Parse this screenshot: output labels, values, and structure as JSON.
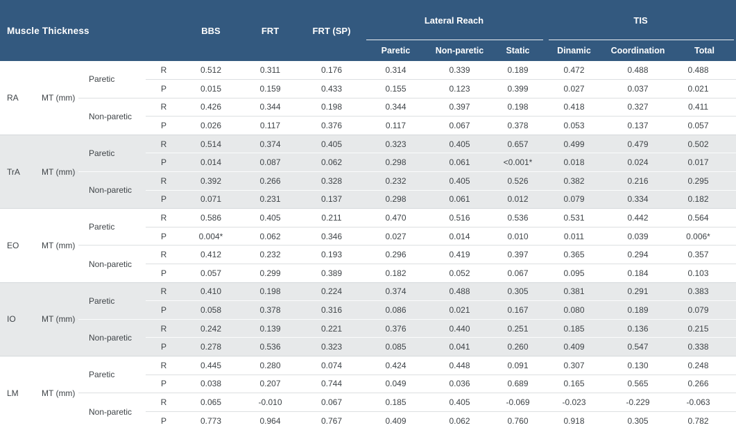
{
  "colors": {
    "header_bg": "#33597f",
    "header_text": "#ffffff",
    "band_bg": "#e7e9ea",
    "text": "#3e4347",
    "separator_light": "#dcdfe1",
    "separator_on_band": "#fbfcfc"
  },
  "table": {
    "title": "Muscle Thickness",
    "flat_headers": [
      "BBS",
      "FRT",
      "FRT (SP)"
    ],
    "groups": [
      {
        "label": "Lateral Reach",
        "cols": [
          "Paretic",
          "Non-paretic",
          "Static"
        ]
      },
      {
        "label": "TIS",
        "cols": [
          "Dinamic",
          "Coordination",
          "Total"
        ]
      }
    ],
    "measure_label": "MT (mm)",
    "blocks": [
      {
        "muscle": "RA",
        "shaded": false,
        "sides": [
          {
            "label": "Paretic",
            "rows": [
              {
                "stat": "R",
                "values": [
                  "0.512",
                  "0.311",
                  "0.176",
                  "0.314",
                  "0.339",
                  "0.189",
                  "0.472",
                  "0.488",
                  "0.488"
                ]
              },
              {
                "stat": "P",
                "values": [
                  "0.015",
                  "0.159",
                  "0.433",
                  "0.155",
                  "0.123",
                  "0.399",
                  "0.027",
                  "0.037",
                  "0.021"
                ]
              }
            ]
          },
          {
            "label": "Non-paretic",
            "rows": [
              {
                "stat": "R",
                "values": [
                  "0.426",
                  "0.344",
                  "0.198",
                  "0.344",
                  "0.397",
                  "0.198",
                  "0.418",
                  "0.327",
                  "0.411"
                ]
              },
              {
                "stat": "P",
                "values": [
                  "0.026",
                  "0.117",
                  "0.376",
                  "0.117",
                  "0.067",
                  "0.378",
                  "0.053",
                  "0.137",
                  "0.057"
                ]
              }
            ]
          }
        ]
      },
      {
        "muscle": "TrA",
        "shaded": true,
        "sides": [
          {
            "label": "Paretic",
            "rows": [
              {
                "stat": "R",
                "values": [
                  "0.514",
                  "0.374",
                  "0.405",
                  "0.323",
                  "0.405",
                  "0.657",
                  "0.499",
                  "0.479",
                  "0.502"
                ]
              },
              {
                "stat": "P",
                "values": [
                  "0.014",
                  "0.087",
                  "0.062",
                  "0.298",
                  "0.061",
                  "<0.001*",
                  "0.018",
                  "0.024",
                  "0.017"
                ]
              }
            ]
          },
          {
            "label": "Non-paretic",
            "rows": [
              {
                "stat": "R",
                "values": [
                  "0.392",
                  "0.266",
                  "0.328",
                  "0.232",
                  "0.405",
                  "0.526",
                  "0.382",
                  "0.216",
                  "0.295"
                ]
              },
              {
                "stat": "P",
                "values": [
                  "0.071",
                  "0.231",
                  "0.137",
                  "0.298",
                  "0.061",
                  "0.012",
                  "0.079",
                  "0.334",
                  "0.182"
                ]
              }
            ]
          }
        ]
      },
      {
        "muscle": "EO",
        "shaded": false,
        "sides": [
          {
            "label": "Paretic",
            "rows": [
              {
                "stat": "R",
                "values": [
                  "0.586",
                  "0.405",
                  "0.211",
                  "0.470",
                  "0.516",
                  "0.536",
                  "0.531",
                  "0.442",
                  "0.564"
                ]
              },
              {
                "stat": "P",
                "values": [
                  "0.004*",
                  "0.062",
                  "0.346",
                  "0.027",
                  "0.014",
                  "0.010",
                  "0.011",
                  "0.039",
                  "0.006*"
                ]
              }
            ]
          },
          {
            "label": "Non-paretic",
            "rows": [
              {
                "stat": "R",
                "values": [
                  "0.412",
                  "0.232",
                  "0.193",
                  "0.296",
                  "0.419",
                  "0.397",
                  "0.365",
                  "0.294",
                  "0.357"
                ]
              },
              {
                "stat": "P",
                "values": [
                  "0.057",
                  "0.299",
                  "0.389",
                  "0.182",
                  "0.052",
                  "0.067",
                  "0.095",
                  "0.184",
                  "0.103"
                ]
              }
            ]
          }
        ]
      },
      {
        "muscle": "IO",
        "shaded": true,
        "sides": [
          {
            "label": "Paretic",
            "rows": [
              {
                "stat": "R",
                "values": [
                  "0.410",
                  "0.198",
                  "0.224",
                  "0.374",
                  "0.488",
                  "0.305",
                  "0.381",
                  "0.291",
                  "0.383"
                ]
              },
              {
                "stat": "P",
                "values": [
                  "0.058",
                  "0.378",
                  "0.316",
                  "0.086",
                  "0.021",
                  "0.167",
                  "0.080",
                  "0.189",
                  "0.079"
                ]
              }
            ]
          },
          {
            "label": "Non-paretic",
            "rows": [
              {
                "stat": "R",
                "values": [
                  "0.242",
                  "0.139",
                  "0.221",
                  "0.376",
                  "0.440",
                  "0.251",
                  "0.185",
                  "0.136",
                  "0.215"
                ]
              },
              {
                "stat": "P",
                "values": [
                  "0.278",
                  "0.536",
                  "0.323",
                  "0.085",
                  "0.041",
                  "0.260",
                  "0.409",
                  "0.547",
                  "0.338"
                ]
              }
            ]
          }
        ]
      },
      {
        "muscle": "LM",
        "shaded": false,
        "sides": [
          {
            "label": "Paretic",
            "rows": [
              {
                "stat": "R",
                "values": [
                  "0.445",
                  "0.280",
                  "0.074",
                  "0.424",
                  "0.448",
                  "0.091",
                  "0.307",
                  "0.130",
                  "0.248"
                ]
              },
              {
                "stat": "P",
                "values": [
                  "0.038",
                  "0.207",
                  "0.744",
                  "0.049",
                  "0.036",
                  "0.689",
                  "0.165",
                  "0.565",
                  "0.266"
                ]
              }
            ]
          },
          {
            "label": "Non-paretic",
            "rows": [
              {
                "stat": "R",
                "values": [
                  "0.065",
                  "-0.010",
                  "0.067",
                  "0.185",
                  "0.405",
                  "-0.069",
                  "-0.023",
                  "-0.229",
                  "-0.063"
                ]
              },
              {
                "stat": "P",
                "values": [
                  "0.773",
                  "0.964",
                  "0.767",
                  "0.409",
                  "0.062",
                  "0.760",
                  "0.918",
                  "0.305",
                  "0.782"
                ]
              }
            ]
          }
        ]
      }
    ]
  }
}
